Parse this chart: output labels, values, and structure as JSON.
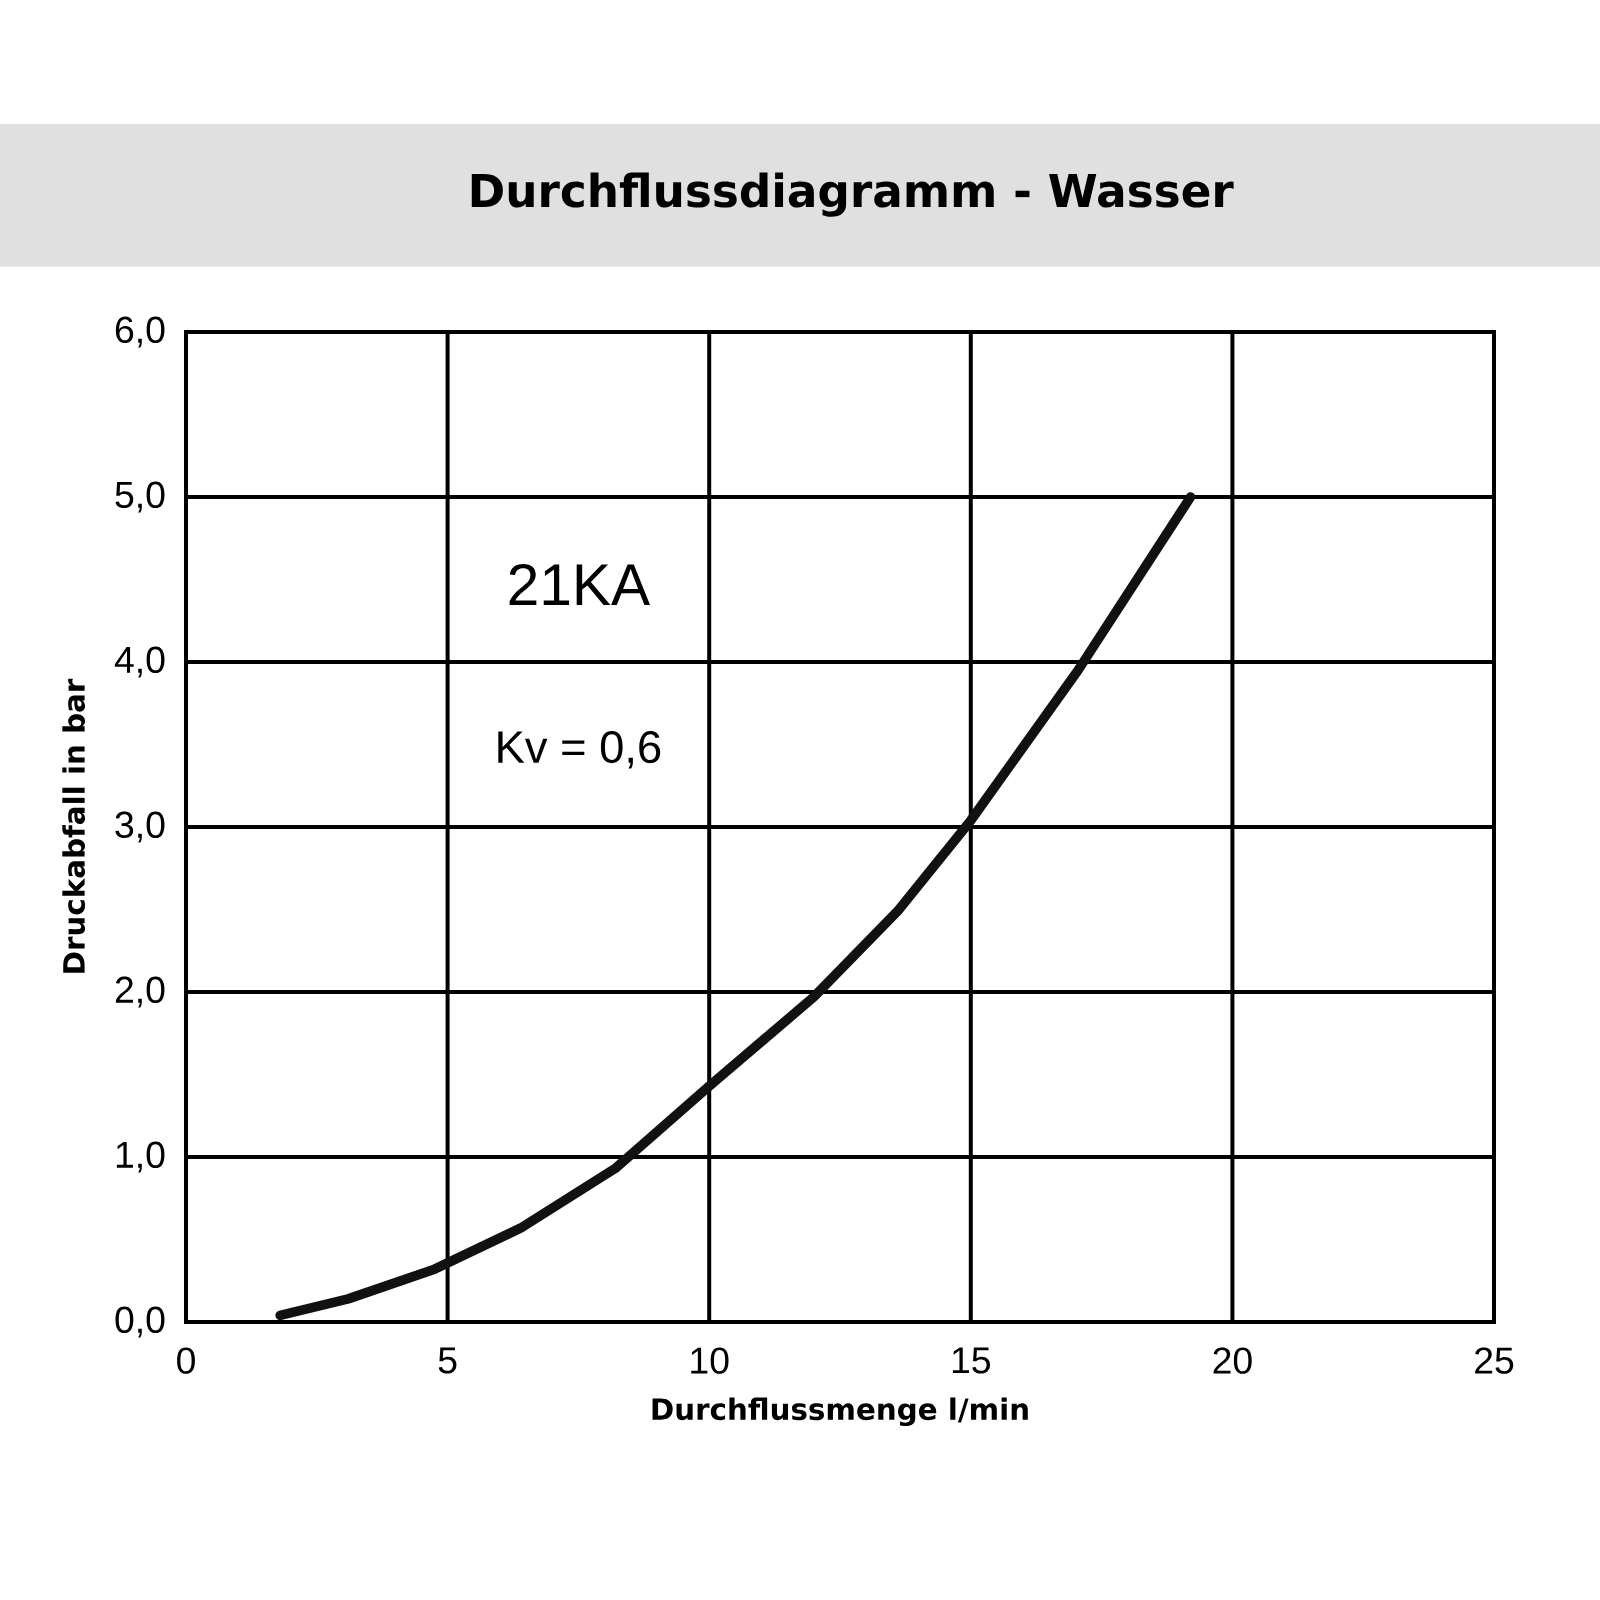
{
  "chart_data": {
    "type": "line",
    "title": "Durchflussdiagramm - Wasser",
    "xlabel": "Durchflussmenge l/min",
    "ylabel": "Druckabfall in bar",
    "annotations": [
      "21KA",
      "Kv = 0,6"
    ],
    "x": [
      1.8,
      3.1,
      4.75,
      6.4,
      8.2,
      10.0,
      12.0,
      13.6,
      15.0,
      17.05,
      19.2
    ],
    "values": [
      0.04,
      0.14,
      0.32,
      0.57,
      0.93,
      1.43,
      1.97,
      2.49,
      3.04,
      3.95,
      5.0
    ],
    "color": "#111111",
    "xlim": [
      0,
      25
    ],
    "xticks": [
      0,
      5,
      10,
      15,
      20,
      25
    ],
    "ylim": [
      0,
      6
    ],
    "yticks": [
      {
        "value": 0,
        "label": "0,0"
      },
      {
        "value": 1,
        "label": "1,0"
      },
      {
        "value": 2,
        "label": "2,0"
      },
      {
        "value": 3,
        "label": "3,0"
      },
      {
        "value": 4,
        "label": "4,0"
      },
      {
        "value": 5,
        "label": "5,0"
      },
      {
        "value": 6,
        "label": "6,0"
      }
    ],
    "grid": true,
    "marker": "none",
    "line_style": "solid"
  }
}
